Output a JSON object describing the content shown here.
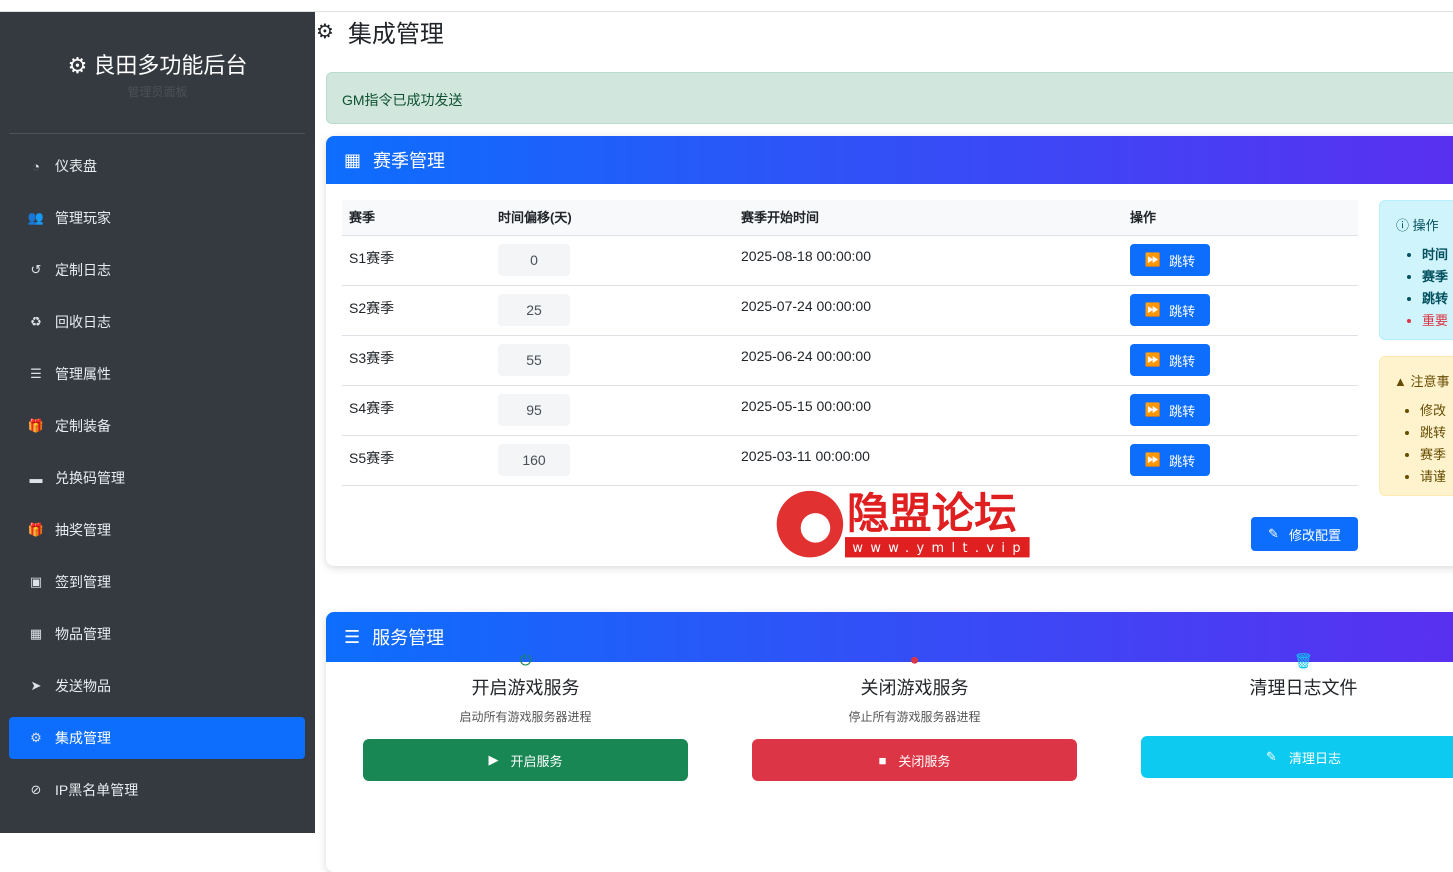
{
  "sidebar": {
    "brand": "良田多功能后台",
    "subtitle": "管理员面板",
    "items": [
      {
        "label": "仪表盘",
        "icon": "tachometer-icon"
      },
      {
        "label": "管理玩家",
        "icon": "users-icon"
      },
      {
        "label": "定制日志",
        "icon": "history-icon"
      },
      {
        "label": "回收日志",
        "icon": "recycle-icon"
      },
      {
        "label": "管理属性",
        "icon": "list-icon"
      },
      {
        "label": "定制装备",
        "icon": "gift-icon"
      },
      {
        "label": "兑换码管理",
        "icon": "ticket-icon"
      },
      {
        "label": "抽奖管理",
        "icon": "gift-icon"
      },
      {
        "label": "签到管理",
        "icon": "calendar-check-icon"
      },
      {
        "label": "物品管理",
        "icon": "boxes-icon"
      },
      {
        "label": "发送物品",
        "icon": "paper-plane-icon"
      },
      {
        "label": "集成管理",
        "icon": "cogs-icon",
        "active": true
      },
      {
        "label": "IP黑名单管理",
        "icon": "ban-icon"
      }
    ]
  },
  "page": {
    "title": "集成管理",
    "alert": "GM指令已成功发送"
  },
  "season": {
    "title": "赛季管理",
    "headers": [
      "赛季",
      "时间偏移(天)",
      "赛季开始时间",
      "操作"
    ],
    "rows": [
      {
        "name": "S1赛季",
        "offset": "0",
        "start": "2025-08-18 00:00:00"
      },
      {
        "name": "S2赛季",
        "offset": "25",
        "start": "2025-07-24 00:00:00"
      },
      {
        "name": "S3赛季",
        "offset": "55",
        "start": "2025-06-24 00:00:00"
      },
      {
        "name": "S4赛季",
        "offset": "95",
        "start": "2025-05-15 00:00:00"
      },
      {
        "name": "S5赛季",
        "offset": "160",
        "start": "2025-03-11 00:00:00"
      }
    ],
    "jump_label": "跳转",
    "modify_label": "修改配置",
    "info": {
      "title": "操作",
      "items": [
        "时间",
        "赛季",
        "跳转",
        "重要"
      ]
    },
    "warn": {
      "title": "注意事",
      "items": [
        "修改",
        "跳转",
        "赛季",
        "请谨"
      ]
    }
  },
  "service": {
    "title": "服务管理",
    "items": [
      {
        "title": "开启游戏服务",
        "desc": "启动所有游戏服务器进程",
        "button": "开启服务",
        "color": "#198754"
      },
      {
        "title": "关闭游戏服务",
        "desc": "停止所有游戏服务器进程",
        "button": "关闭服务",
        "color": "#dc3545"
      },
      {
        "title": "清理日志文件",
        "desc": "",
        "button": "清理日志",
        "color": "#0dcaf0"
      }
    ]
  },
  "watermark": {
    "text": "隐盟论坛",
    "url": "www.ymlt.vip"
  },
  "colors": {
    "primary": "#0d6efd",
    "sidebar": "#343a40",
    "success": "#198754",
    "danger": "#dc3545"
  }
}
